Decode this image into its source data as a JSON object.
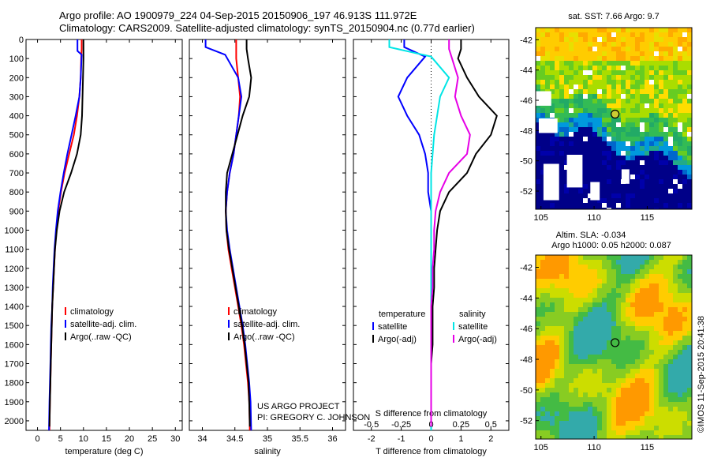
{
  "header": {
    "line1": "Argo profile: AO 1900979_224 04-Sep-2015 20150906_197 46.913S 111.972E",
    "line2": "Climatology: CARS2009. Satellite-adjusted climatology: synTS_20150904.nc (0.77d earlier)"
  },
  "chart_data": [
    {
      "type": "line",
      "panel": "temperature",
      "xlabel": "temperature (deg C)",
      "ylabel": "",
      "xlim": [
        -2.5,
        31.5
      ],
      "ylim": [
        2050,
        0
      ],
      "xticks": [
        0,
        5,
        10,
        15,
        20,
        25,
        30
      ],
      "yticks": [
        0,
        100,
        200,
        300,
        400,
        500,
        600,
        700,
        800,
        900,
        1000,
        1100,
        1200,
        1300,
        1400,
        1500,
        1600,
        1700,
        1800,
        1900,
        2000
      ],
      "legend": {
        "placement": "lower-right",
        "entries": [
          "climatology",
          "satellite-adj. clim.",
          "Argo(..raw -QC)"
        ]
      },
      "series": [
        {
          "name": "climatology",
          "color": "#ff0000",
          "x": [
            9.6,
            9.6,
            9.5,
            9.4,
            9.1,
            8.6,
            7.9,
            6.9,
            5.9,
            5.1,
            4.5,
            4.1,
            3.8,
            3.6,
            3.4,
            3.2,
            3.1,
            3.0,
            2.9,
            2.8,
            2.7,
            2.6
          ],
          "y": [
            0,
            50,
            100,
            200,
            300,
            400,
            500,
            600,
            700,
            800,
            900,
            1000,
            1100,
            1200,
            1300,
            1400,
            1500,
            1600,
            1700,
            1800,
            1900,
            2050
          ]
        },
        {
          "name": "satellite-adj. clim.",
          "color": "#0000ff",
          "x": [
            8.7,
            8.7,
            9.6,
            9.4,
            9.1,
            8.3,
            7.4,
            6.5,
            5.7,
            5.0,
            4.4,
            4.0,
            3.7,
            3.5,
            3.3,
            3.2,
            3.0,
            2.9,
            2.8,
            2.7,
            2.6,
            2.5
          ],
          "y": [
            0,
            60,
            80,
            200,
            300,
            400,
            500,
            600,
            700,
            800,
            900,
            1000,
            1100,
            1200,
            1300,
            1400,
            1500,
            1600,
            1700,
            1800,
            1900,
            2050
          ]
        },
        {
          "name": "Argo(..raw -QC)",
          "color": "#000000",
          "x": [
            10.0,
            10.0,
            10.0,
            9.9,
            9.8,
            9.7,
            9.4,
            8.6,
            7.3,
            5.8,
            4.8,
            4.2,
            3.8,
            3.6,
            3.4,
            3.2,
            3.1,
            3.0,
            2.9,
            2.8,
            2.7,
            2.6
          ],
          "y": [
            0,
            50,
            100,
            200,
            300,
            400,
            500,
            600,
            700,
            800,
            900,
            1000,
            1100,
            1200,
            1300,
            1400,
            1500,
            1600,
            1700,
            1800,
            1900,
            2030
          ]
        }
      ]
    },
    {
      "type": "line",
      "panel": "salinity",
      "xlabel": "salinity",
      "xlim": [
        33.8,
        36.2
      ],
      "ylim": [
        2050,
        0
      ],
      "xticks": [
        34,
        34.5,
        35,
        35.5,
        36
      ],
      "legend": {
        "placement": "lower-right",
        "entries": [
          "climatology",
          "satellite-adj. clim.",
          "Argo(..raw -QC)"
        ]
      },
      "series": [
        {
          "name": "climatology",
          "color": "#ff0000",
          "x": [
            34.52,
            34.52,
            34.52,
            34.55,
            34.58,
            34.56,
            34.52,
            34.48,
            34.42,
            34.38,
            34.36,
            34.37,
            34.4,
            34.45,
            34.5,
            34.55,
            34.6,
            34.64,
            34.67,
            34.7,
            34.72,
            34.73
          ],
          "y": [
            0,
            50,
            100,
            200,
            300,
            400,
            500,
            600,
            700,
            800,
            900,
            1000,
            1100,
            1200,
            1300,
            1400,
            1500,
            1600,
            1700,
            1800,
            1900,
            2050
          ]
        },
        {
          "name": "satellite-adj. clim.",
          "color": "#0000ff",
          "x": [
            34.05,
            34.05,
            34.35,
            34.55,
            34.6,
            34.56,
            34.52,
            34.48,
            34.42,
            34.38,
            34.36,
            34.38,
            34.42,
            34.47,
            34.52,
            34.57,
            34.62,
            34.66,
            34.69,
            34.72,
            34.74,
            34.75
          ],
          "y": [
            0,
            40,
            80,
            200,
            300,
            400,
            500,
            600,
            700,
            800,
            900,
            1000,
            1100,
            1200,
            1300,
            1400,
            1500,
            1600,
            1700,
            1800,
            1900,
            2050
          ]
        },
        {
          "name": "Argo(..raw -QC)",
          "color": "#000000",
          "x": [
            34.68,
            34.68,
            34.7,
            34.75,
            34.72,
            34.62,
            34.54,
            34.46,
            34.38,
            34.36,
            34.36,
            34.37,
            34.41,
            34.46,
            34.51,
            34.56,
            34.61,
            34.65,
            34.68,
            34.71,
            34.72,
            34.73
          ],
          "y": [
            0,
            50,
            100,
            200,
            300,
            400,
            500,
            600,
            700,
            800,
            900,
            1000,
            1100,
            1200,
            1300,
            1400,
            1500,
            1600,
            1700,
            1800,
            1900,
            2030
          ]
        }
      ]
    },
    {
      "type": "line",
      "panel": "difference",
      "xlabel": "T difference from climatology",
      "x2label": "S difference from climatology",
      "xlim": [
        -2.6,
        2.6
      ],
      "ylim": [
        2050,
        0
      ],
      "xticks": [
        -2,
        -1,
        0,
        1,
        2
      ],
      "x2ticks": [
        "-0.5",
        "-0.25",
        "0",
        "0.25",
        "0.5"
      ],
      "legend_temperature": {
        "heading": "temperature",
        "entries": [
          "satellite",
          "Argo(-adj)"
        ]
      },
      "legend_salinity": {
        "heading": "salinity",
        "entries": [
          "satellite",
          "Argo(-adj)"
        ]
      },
      "series": [
        {
          "name": "satellite (T)",
          "color": "#0000ff",
          "x": [
            -0.9,
            -0.9,
            -0.2,
            -0.8,
            -1.1,
            -0.8,
            -0.4,
            -0.2,
            -0.1,
            -0.1,
            0.0,
            0.0,
            0.0,
            0.0,
            0.0,
            0.0,
            0.0,
            0.0,
            0.0,
            0.0,
            0.0,
            0.0
          ],
          "y": [
            0,
            40,
            90,
            200,
            300,
            400,
            500,
            600,
            700,
            800,
            900,
            1000,
            1100,
            1200,
            1300,
            1400,
            1500,
            1600,
            1700,
            1800,
            1900,
            2050
          ]
        },
        {
          "name": "Argo(-adj) (T)",
          "color": "#000000",
          "x": [
            1.0,
            1.0,
            0.9,
            1.2,
            1.6,
            2.2,
            2.0,
            1.5,
            1.2,
            0.6,
            0.3,
            0.2,
            0.15,
            0.1,
            0.1,
            0.05,
            0.05,
            0.05,
            0.0,
            0.0,
            0.0,
            0.0
          ],
          "y": [
            0,
            50,
            100,
            200,
            300,
            400,
            500,
            600,
            700,
            800,
            900,
            1000,
            1100,
            1200,
            1300,
            1400,
            1500,
            1600,
            1700,
            1800,
            1900,
            2030
          ]
        },
        {
          "name": "satellite (S)",
          "color": "#00e5e5",
          "x": [
            -1.4,
            -1.4,
            0.0,
            0.6,
            0.3,
            0.2,
            0.1,
            0.05,
            0.0,
            0.0,
            0.0,
            0.0,
            0.0,
            0.0,
            0.0,
            0.0,
            0.0,
            0.0,
            0.0,
            0.0,
            0.0,
            0.0
          ],
          "y": [
            0,
            40,
            90,
            200,
            300,
            400,
            500,
            600,
            700,
            800,
            900,
            1000,
            1100,
            1200,
            1300,
            1400,
            1500,
            1600,
            1700,
            1800,
            1900,
            2050
          ]
        },
        {
          "name": "Argo(-adj) (S)",
          "color": "#e600e6",
          "x": [
            0.6,
            0.6,
            0.7,
            0.9,
            0.8,
            1.0,
            1.3,
            1.2,
            0.6,
            0.3,
            0.15,
            0.1,
            0.1,
            0.05,
            0.05,
            0.0,
            0.0,
            0.0,
            0.0,
            0.0,
            0.0,
            0.0
          ],
          "y": [
            0,
            50,
            100,
            200,
            300,
            400,
            500,
            600,
            700,
            800,
            900,
            1000,
            1100,
            1200,
            1300,
            1400,
            1500,
            1600,
            1700,
            1800,
            1900,
            2030
          ]
        }
      ]
    },
    {
      "type": "heatmap",
      "panel": "sst-map",
      "title": "sat. SST: 7.66 Argo: 9.7",
      "xlim": [
        104.5,
        119.2
      ],
      "ylim": [
        -53.2,
        -41.2
      ],
      "xticks": [
        105,
        110,
        115
      ],
      "yticks": [
        -42,
        -44,
        -46,
        -48,
        -50,
        -52
      ],
      "marker": {
        "lon": 111.972,
        "lat": -46.913
      }
    },
    {
      "type": "heatmap",
      "panel": "sla-map",
      "title": "Altim. SLA: -0.034",
      "subtitle": "Argo h1000: 0.05 h2000: 0.087",
      "xlim": [
        104.5,
        119.2
      ],
      "ylim": [
        -53.2,
        -41.2
      ],
      "xticks": [
        105,
        110,
        115
      ],
      "yticks": [
        -42,
        -44,
        -46,
        -48,
        -50,
        -52
      ],
      "marker": {
        "lon": 111.972,
        "lat": -46.913
      }
    }
  ],
  "annotations": {
    "project": "US ARGO PROJECT",
    "pi": "PI: GREGORY C. JOHNSON",
    "credit": "©IMOS 11-Sep-2015 20:41:38"
  },
  "colors": {
    "climatology": "#ff0000",
    "satellite": "#0000ff",
    "argo": "#000000",
    "sat_sal": "#00e5e5",
    "argo_sal": "#e600e6"
  }
}
